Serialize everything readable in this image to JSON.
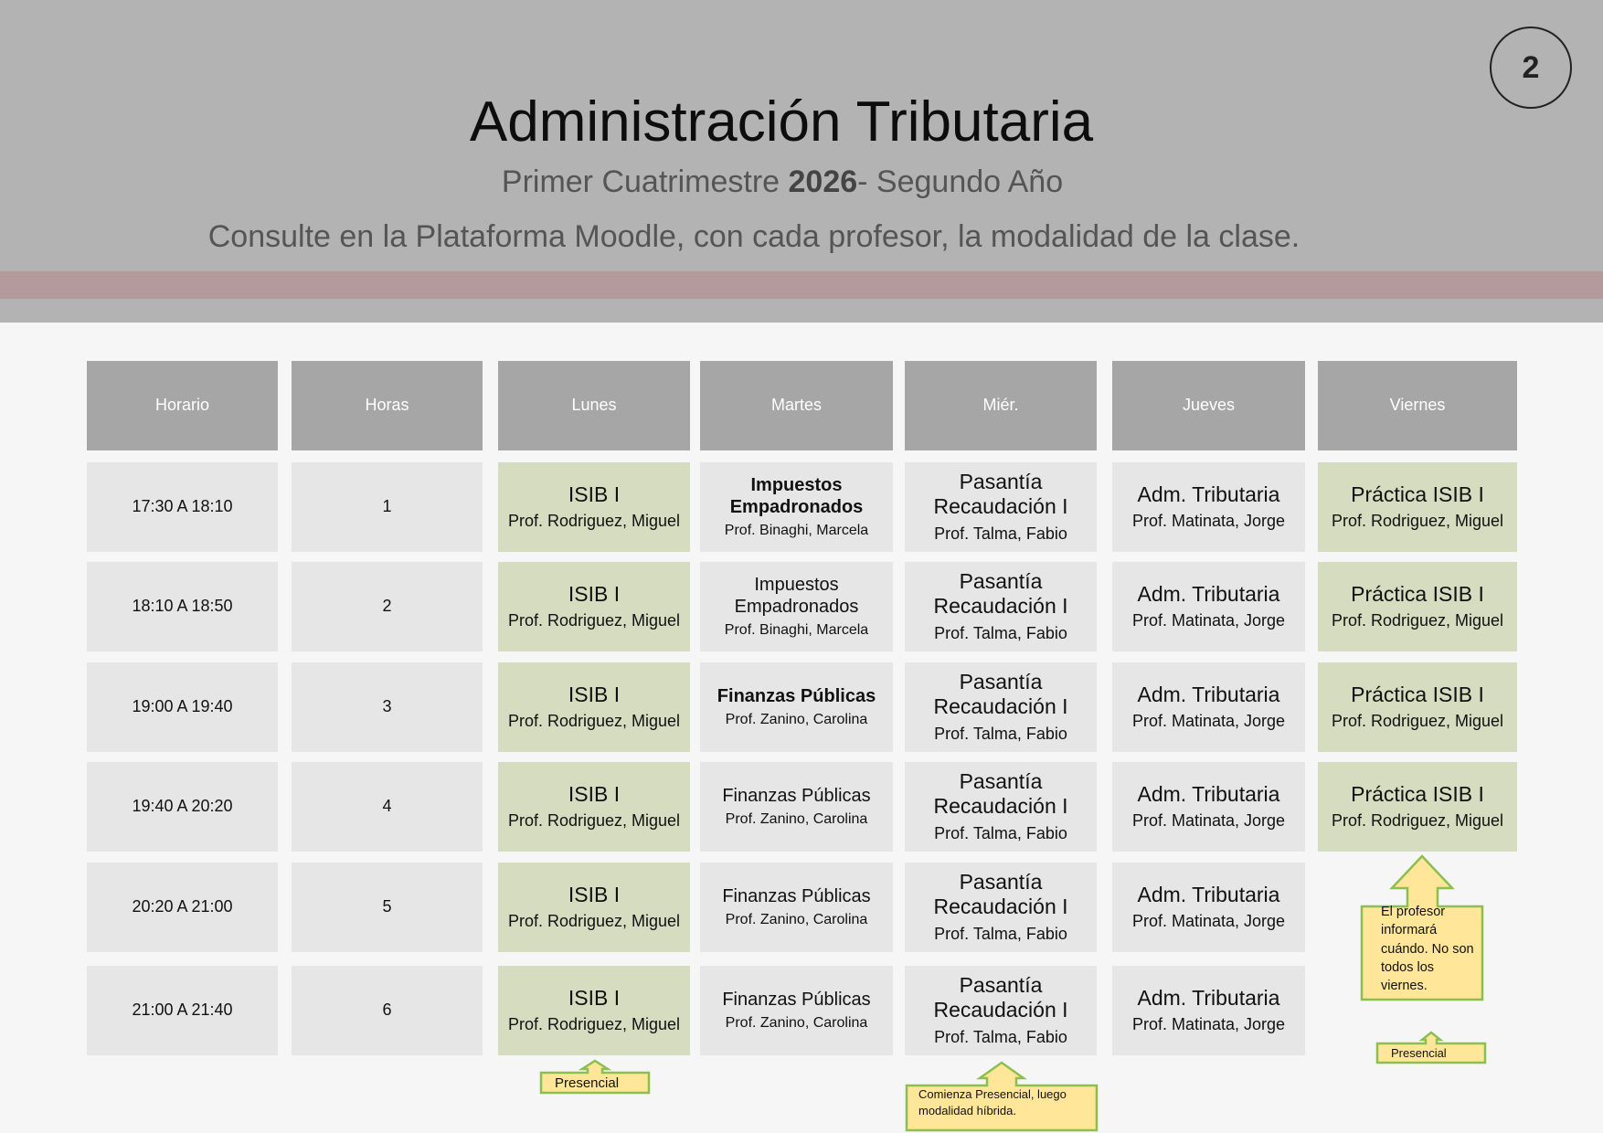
{
  "header": {
    "title": "Administración Tributaria",
    "subtitle_pre": "Primer Cuatrimestre ",
    "subtitle_year": "2026",
    "subtitle_post": "- Segundo Año",
    "note": "Consulte en la Plataforma Moodle, con cada profesor,  la modalidad de la clase.",
    "page_number": "2"
  },
  "columns": [
    "Horario",
    "Horas",
    "Lunes",
    "Martes",
    "Miér.",
    "Jueves",
    "Viernes"
  ],
  "rows": [
    {
      "time": "17:30 A 18:10",
      "hour": "1",
      "lunes": {
        "s": "ISIB I",
        "p": "Prof. Rodriguez, Miguel"
      },
      "martes": {
        "s": "Impuestos Empadronados",
        "p": "Prof. Binaghi, Marcela",
        "bold": true
      },
      "mier": {
        "s": "Pasantía Recaudación I",
        "p": "Prof. Talma, Fabio"
      },
      "jueves": {
        "s": "Adm. Tributaria",
        "p": "Prof. Matinata, Jorge"
      },
      "viernes": {
        "s": "Práctica ISIB I",
        "p": "Prof. Rodriguez, Miguel"
      }
    },
    {
      "time": "18:10 A 18:50",
      "hour": "2",
      "lunes": {
        "s": "ISIB I",
        "p": "Prof. Rodriguez, Miguel"
      },
      "martes": {
        "s": "Impuestos Empadronados",
        "p": "Prof. Binaghi, Marcela"
      },
      "mier": {
        "s": "Pasantía Recaudación I",
        "p": "Prof. Talma, Fabio"
      },
      "jueves": {
        "s": "Adm. Tributaria",
        "p": "Prof. Matinata, Jorge"
      },
      "viernes": {
        "s": "Práctica ISIB I",
        "p": "Prof. Rodriguez, Miguel"
      }
    },
    {
      "time": "19:00 A 19:40",
      "hour": "3",
      "lunes": {
        "s": "ISIB I",
        "p": "Prof. Rodriguez, Miguel"
      },
      "martes": {
        "s": "Finanzas Públicas",
        "p": "Prof. Zanino, Carolina",
        "bold": true
      },
      "mier": {
        "s": "Pasantía Recaudación I",
        "p": "Prof. Talma, Fabio"
      },
      "jueves": {
        "s": "Adm. Tributaria",
        "p": "Prof. Matinata, Jorge"
      },
      "viernes": {
        "s": "Práctica ISIB I",
        "p": "Prof. Rodriguez, Miguel"
      }
    },
    {
      "time": "19:40 A 20:20",
      "hour": "4",
      "lunes": {
        "s": "ISIB I",
        "p": "Prof. Rodriguez, Miguel"
      },
      "martes": {
        "s": "Finanzas Públicas",
        "p": "Prof. Zanino, Carolina"
      },
      "mier": {
        "s": "Pasantía Recaudación I",
        "p": "Prof. Talma, Fabio"
      },
      "jueves": {
        "s": "Adm. Tributaria",
        "p": "Prof. Matinata, Jorge"
      },
      "viernes": {
        "s": "Práctica ISIB I",
        "p": "Prof. Rodriguez, Miguel"
      }
    },
    {
      "time": "20:20 A 21:00",
      "hour": "5",
      "lunes": {
        "s": "ISIB I",
        "p": "Prof. Rodriguez, Miguel"
      },
      "martes": {
        "s": "Finanzas Públicas",
        "p": "Prof. Zanino, Carolina"
      },
      "mier": {
        "s": "Pasantía Recaudación I",
        "p": "Prof. Talma, Fabio"
      },
      "jueves": {
        "s": "Adm. Tributaria",
        "p": "Prof. Matinata, Jorge"
      },
      "viernes": null
    },
    {
      "time": "21:00 A 21:40",
      "hour": "6",
      "lunes": {
        "s": "ISIB I",
        "p": "Prof. Rodriguez, Miguel"
      },
      "martes": {
        "s": "Finanzas Públicas",
        "p": "Prof. Zanino, Carolina"
      },
      "mier": {
        "s": "Pasantía Recaudación I",
        "p": "Prof. Talma, Fabio"
      },
      "jueves": {
        "s": "Adm. Tributaria",
        "p": "Prof. Matinata, Jorge"
      },
      "viernes": null
    }
  ],
  "callouts": {
    "lunes": "Presencial",
    "mier": "Comienza Presencial, luego modalidad híbrida.",
    "viernes_info": "El profesor informará cuándo. No son todos los viernes.",
    "viernes": "Presencial"
  },
  "colors": {
    "header_band": "#b3b3b3",
    "accent_band": "#b49a9d",
    "column_header": "#a6a6a6",
    "cell": "#e6e6e6",
    "green_cell": "#d6dcbf",
    "callout_fill": "#ffe699",
    "callout_border": "#8cbf4f"
  }
}
